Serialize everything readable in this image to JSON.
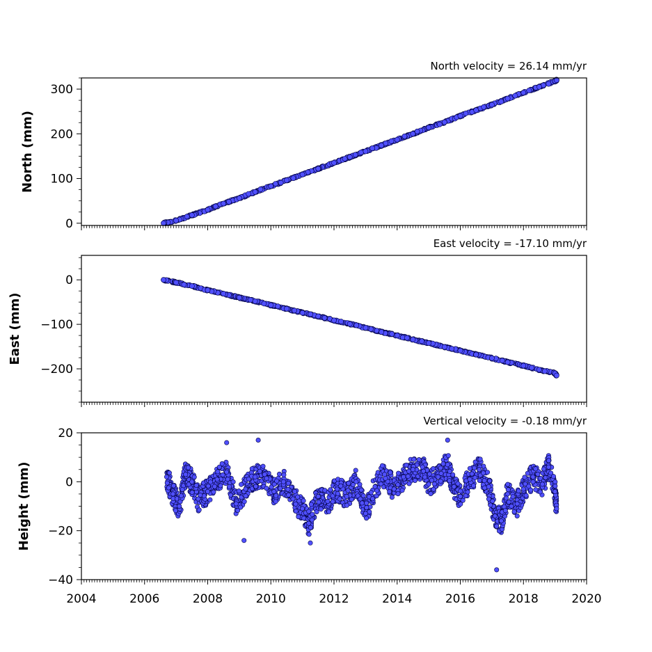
{
  "chart_data": [
    {
      "type": "scatter",
      "title": "North velocity = 26.14 mm/yr",
      "ylabel": "North (mm)",
      "xlabel": "",
      "xlim": [
        2004,
        2020
      ],
      "ylim": [
        -5,
        325
      ],
      "xticks": [
        "2004",
        "2006",
        "2008",
        "2010",
        "2012",
        "2014",
        "2016",
        "2018",
        "2020"
      ],
      "yticks": [
        0,
        100,
        200,
        300
      ],
      "yminor_step": 25,
      "grid": false,
      "marker_color": "#5050ff",
      "marker_edge": "#000040",
      "series": [
        {
          "values": [
            [
              2006.6,
              0
            ],
            [
              2007.0,
              6
            ],
            [
              2007.5,
              18
            ],
            [
              2008.0,
              30
            ],
            [
              2008.5,
              44
            ],
            [
              2009.0,
              56
            ],
            [
              2009.5,
              70
            ],
            [
              2010.0,
              83
            ],
            [
              2010.5,
              96
            ],
            [
              2011.0,
              109
            ],
            [
              2011.5,
              122
            ],
            [
              2012.0,
              135
            ],
            [
              2012.5,
              148
            ],
            [
              2013.0,
              161
            ],
            [
              2013.5,
              174
            ],
            [
              2014.0,
              187
            ],
            [
              2014.5,
              200
            ],
            [
              2015.0,
              214
            ],
            [
              2015.5,
              226
            ],
            [
              2016.0,
              240
            ],
            [
              2016.5,
              253
            ],
            [
              2017.0,
              265
            ],
            [
              2017.5,
              279
            ],
            [
              2018.0,
              292
            ],
            [
              2018.5,
              305
            ],
            [
              2019.0,
              318
            ],
            [
              2019.05,
              320
            ]
          ]
        }
      ]
    },
    {
      "type": "scatter",
      "title": "East velocity = -17.10 mm/yr",
      "ylabel": "East (mm)",
      "xlabel": "",
      "xlim": [
        2004,
        2020
      ],
      "ylim": [
        -275,
        55
      ],
      "xticks": [
        "2004",
        "2006",
        "2008",
        "2010",
        "2012",
        "2014",
        "2016",
        "2018",
        "2020"
      ],
      "yticks": [
        0,
        -100,
        -200
      ],
      "yminor_step": 25,
      "grid": false,
      "marker_color": "#5050ff",
      "marker_edge": "#000040",
      "series": [
        {
          "values": [
            [
              2006.6,
              0
            ],
            [
              2007.0,
              -6
            ],
            [
              2007.5,
              -14
            ],
            [
              2008.0,
              -23
            ],
            [
              2008.5,
              -31
            ],
            [
              2009.0,
              -40
            ],
            [
              2009.5,
              -48
            ],
            [
              2010.0,
              -57
            ],
            [
              2010.5,
              -65
            ],
            [
              2011.0,
              -74
            ],
            [
              2011.5,
              -82
            ],
            [
              2012.0,
              -91
            ],
            [
              2012.5,
              -99
            ],
            [
              2013.0,
              -108
            ],
            [
              2013.5,
              -117
            ],
            [
              2014.0,
              -125
            ],
            [
              2014.5,
              -134
            ],
            [
              2015.0,
              -142
            ],
            [
              2015.5,
              -151
            ],
            [
              2016.0,
              -159
            ],
            [
              2016.5,
              -168
            ],
            [
              2017.0,
              -176
            ],
            [
              2017.5,
              -185
            ],
            [
              2018.0,
              -193
            ],
            [
              2018.5,
              -202
            ],
            [
              2019.0,
              -210
            ],
            [
              2019.05,
              -215
            ]
          ]
        }
      ]
    },
    {
      "type": "scatter",
      "title": "Vertical velocity = -0.18 mm/yr",
      "ylabel": "Height (mm)",
      "xlabel": "",
      "xlim": [
        2004,
        2020
      ],
      "ylim": [
        -40,
        20
      ],
      "xticks": [
        "2004",
        "2006",
        "2008",
        "2010",
        "2012",
        "2014",
        "2016",
        "2018",
        "2020"
      ],
      "yticks": [
        20,
        0,
        -20,
        -40
      ],
      "yminor_step": 5,
      "grid": false,
      "marker_color": "#5050ff",
      "marker_edge": "#000040",
      "series": [
        {
          "values": [
            [
              2006.7,
              2
            ],
            [
              2006.9,
              -5
            ],
            [
              2007.1,
              -10
            ],
            [
              2007.3,
              3
            ],
            [
              2007.5,
              0
            ],
            [
              2007.7,
              -7
            ],
            [
              2008.0,
              -4
            ],
            [
              2008.3,
              1
            ],
            [
              2008.6,
              4
            ],
            [
              2008.9,
              -9
            ],
            [
              2009.2,
              -3
            ],
            [
              2009.5,
              2
            ],
            [
              2009.8,
              3
            ],
            [
              2010.1,
              -4
            ],
            [
              2010.4,
              0
            ],
            [
              2010.7,
              -7
            ],
            [
              2011.0,
              -11
            ],
            [
              2011.2,
              -17
            ],
            [
              2011.5,
              -6
            ],
            [
              2011.8,
              -8
            ],
            [
              2012.1,
              -3
            ],
            [
              2012.4,
              -6
            ],
            [
              2012.7,
              0
            ],
            [
              2013.0,
              -13
            ],
            [
              2013.3,
              -2
            ],
            [
              2013.6,
              3
            ],
            [
              2013.9,
              -3
            ],
            [
              2014.2,
              2
            ],
            [
              2014.5,
              5
            ],
            [
              2014.8,
              6
            ],
            [
              2015.0,
              -1
            ],
            [
              2015.3,
              2
            ],
            [
              2015.6,
              7
            ],
            [
              2015.8,
              -2
            ],
            [
              2016.0,
              -6
            ],
            [
              2016.3,
              1
            ],
            [
              2016.6,
              5
            ],
            [
              2016.9,
              -2
            ],
            [
              2017.1,
              -14
            ],
            [
              2017.3,
              -16
            ],
            [
              2017.5,
              -5
            ],
            [
              2017.8,
              -9
            ],
            [
              2018.0,
              -3
            ],
            [
              2018.3,
              2
            ],
            [
              2018.6,
              -1
            ],
            [
              2018.8,
              6
            ],
            [
              2019.0,
              -4
            ],
            [
              2019.05,
              -11
            ],
            [
              2009.15,
              -24
            ],
            [
              2011.25,
              -25
            ],
            [
              2017.15,
              -36
            ],
            [
              2015.6,
              17
            ],
            [
              2009.6,
              17
            ],
            [
              2008.6,
              16
            ]
          ]
        }
      ]
    }
  ]
}
